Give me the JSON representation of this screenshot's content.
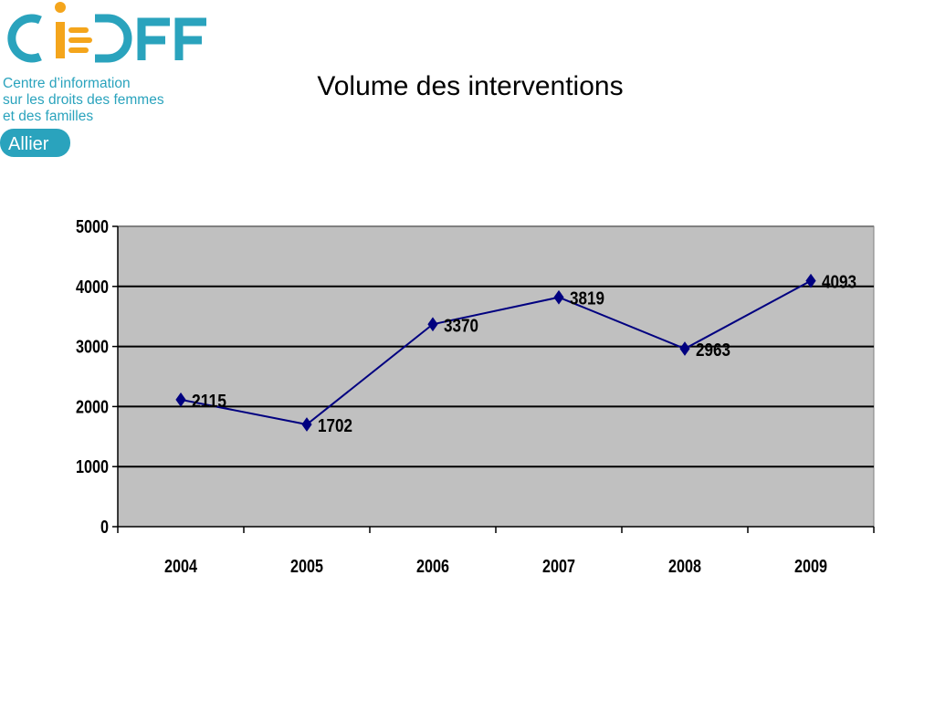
{
  "logo": {
    "wordmark": "CIDFF",
    "line1": "Centre d’information",
    "line2": "sur les droits des femmes",
    "line3": "et des familles",
    "badge": "Allier",
    "colors": {
      "teal": "#2aa3bd",
      "orange": "#f4a51c"
    }
  },
  "slide": {
    "title": "Volume des interventions"
  },
  "chart_data": {
    "type": "line",
    "title": "Volume des interventions",
    "xlabel": "",
    "ylabel": "",
    "categories": [
      "2004",
      "2005",
      "2006",
      "2007",
      "2008",
      "2009"
    ],
    "series": [
      {
        "values": [
          2115,
          1702,
          3370,
          3819,
          2963,
          4093
        ],
        "color": "#000080",
        "marker": "diamond"
      }
    ],
    "data_labels": [
      "2115",
      "1702",
      "3370",
      "3819",
      "2963",
      "4093"
    ],
    "ylim": [
      0,
      5000
    ],
    "yticks": [
      0,
      1000,
      2000,
      3000,
      4000,
      5000
    ],
    "grid": "horizontal",
    "plot_background": "#c0c0c0",
    "legend": "none"
  }
}
